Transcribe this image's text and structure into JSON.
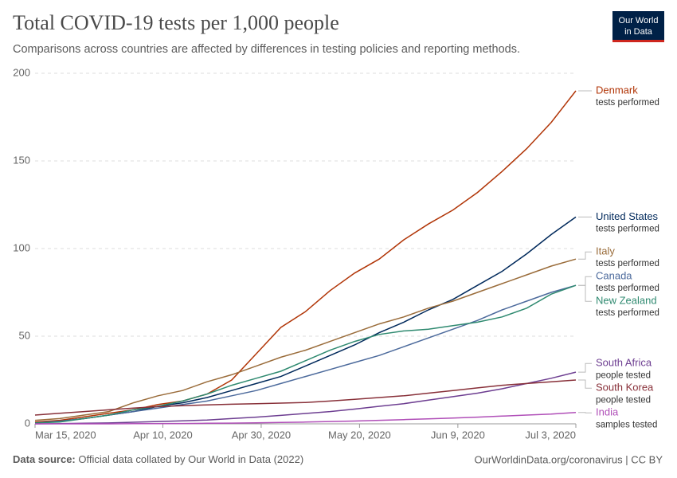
{
  "chart_data": {
    "type": "line",
    "title": "Total COVID-19 tests per 1,000 people",
    "subtitle": "Comparisons across countries are affected by differences in testing policies and reporting methods.",
    "x": [
      "2020-03-15",
      "2020-03-20",
      "2020-03-25",
      "2020-03-30",
      "2020-04-04",
      "2020-04-09",
      "2020-04-14",
      "2020-04-19",
      "2020-04-24",
      "2020-04-29",
      "2020-05-04",
      "2020-05-09",
      "2020-05-14",
      "2020-05-19",
      "2020-05-24",
      "2020-05-29",
      "2020-06-03",
      "2020-06-08",
      "2020-06-13",
      "2020-06-18",
      "2020-06-23",
      "2020-06-28",
      "2020-07-03"
    ],
    "xlim": [
      "2020-03-15",
      "2020-07-03"
    ],
    "xticks": [
      {
        "value": "2020-03-15",
        "label": "Mar 15, 2020"
      },
      {
        "value": "2020-04-10",
        "label": "Apr 10, 2020"
      },
      {
        "value": "2020-04-30",
        "label": "Apr 30, 2020"
      },
      {
        "value": "2020-05-20",
        "label": "May 20, 2020"
      },
      {
        "value": "2020-06-09",
        "label": "Jun 9, 2020"
      },
      {
        "value": "2020-07-03",
        "label": "Jul 3, 2020"
      }
    ],
    "ylim": [
      0,
      200
    ],
    "yticks": [
      0,
      50,
      100,
      150,
      200
    ],
    "grid": true,
    "series": [
      {
        "name": "Denmark",
        "note": "tests performed",
        "color": "#b13507",
        "values": [
          1,
          2,
          4,
          6,
          8,
          11,
          13,
          17,
          25,
          40,
          55,
          64,
          76,
          86,
          94,
          105,
          114,
          122,
          132,
          144,
          157,
          172,
          190
        ]
      },
      {
        "name": "United States",
        "note": "tests performed",
        "color": "#00295b",
        "values": [
          0.5,
          1.5,
          3,
          5,
          7,
          10,
          12,
          15,
          19,
          23,
          27,
          33,
          39,
          45,
          52,
          58,
          65,
          71,
          79,
          87,
          97,
          108,
          118
        ]
      },
      {
        "name": "Italy",
        "note": "tests performed",
        "color": "#9a6c3a",
        "values": [
          2,
          3,
          5,
          7,
          12,
          16,
          19,
          24,
          28,
          33,
          38,
          42,
          47,
          52,
          57,
          61,
          66,
          70,
          75,
          80,
          85,
          90,
          94
        ]
      },
      {
        "name": "Canada",
        "note": "tests performed",
        "color": "#4c6a9c",
        "values": [
          0.5,
          1.5,
          3,
          5,
          7,
          9,
          11,
          13,
          16,
          19,
          23,
          27,
          31,
          35,
          39,
          44,
          49,
          54,
          59,
          65,
          70,
          75,
          79
        ]
      },
      {
        "name": "New Zealand",
        "note": "tests performed",
        "color": "#2f8a70",
        "values": [
          0.5,
          1,
          3,
          5,
          8,
          10,
          13,
          17,
          22,
          26,
          30,
          36,
          42,
          47,
          51,
          53,
          54,
          56,
          58,
          61,
          66,
          74,
          79
        ]
      },
      {
        "name": "South Africa",
        "note": "people tested",
        "color": "#6d3e91",
        "values": [
          0,
          0.1,
          0.3,
          0.5,
          0.9,
          1.3,
          1.7,
          2.2,
          3,
          3.8,
          4.8,
          5.9,
          7,
          8.4,
          10,
          11.5,
          13.5,
          15.5,
          17.5,
          20,
          23,
          26,
          29.5
        ]
      },
      {
        "name": "South Korea",
        "note": "people tested",
        "color": "#883039",
        "values": [
          5,
          6,
          7,
          8,
          9,
          9.8,
          10.3,
          10.8,
          11.2,
          11.5,
          11.8,
          12.2,
          13,
          14,
          15,
          16,
          17.5,
          19,
          20.5,
          22,
          23,
          24,
          25
        ]
      },
      {
        "name": "India",
        "note": "samples tested",
        "color": "#b04fb8",
        "values": [
          0,
          0,
          0,
          0,
          0.1,
          0.1,
          0.2,
          0.3,
          0.4,
          0.6,
          0.8,
          1,
          1.3,
          1.6,
          2,
          2.4,
          2.8,
          3.3,
          3.8,
          4.4,
          5,
          5.6,
          6.5
        ]
      }
    ]
  },
  "logo": [
    "Our World",
    "in Data"
  ],
  "footer": {
    "source_label": "Data source:",
    "source": "Official data collated by Our World in Data (2022)",
    "right": "OurWorldinData.org/coronavirus | CC BY"
  }
}
